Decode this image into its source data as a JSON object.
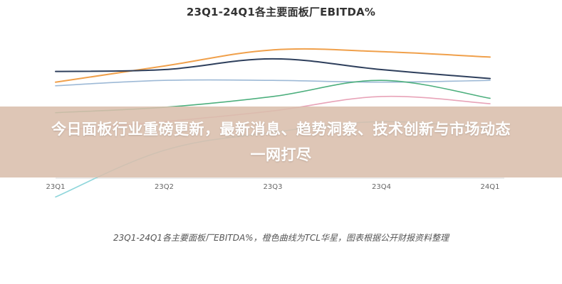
{
  "headline": "今日面板行业重磅更新，最新消息、趋势洞察、技术创新与市场动态一网打尽",
  "caption": "23Q1-24Q1各主要面板厂EBITDA%，橙色曲线为TCL华星，图表根据公开财报资料整理",
  "colors": {
    "overlay": "#d9beac",
    "orange": "#f0a04b",
    "navy": "#2e3f5c",
    "lightblue": "#9db9d6",
    "green": "#4caf7d",
    "pink": "#e8a3b8",
    "cyan": "#8fd6db"
  },
  "chart_data": {
    "type": "line",
    "title": "23Q1-24Q1各主要面板厂EBITDA%",
    "categories": [
      "23Q1",
      "23Q2",
      "23Q3",
      "23Q4",
      "24Q1"
    ],
    "series": [
      {
        "color_key": "orange",
        "values": [
          22,
          31,
          40,
          39,
          36
        ]
      },
      {
        "color_key": "navy",
        "values": [
          28,
          29,
          35,
          29,
          24
        ]
      },
      {
        "color_key": "lightblue",
        "values": [
          20,
          23,
          23,
          22,
          23
        ]
      },
      {
        "color_key": "green",
        "values": [
          5,
          8,
          14,
          23,
          13
        ]
      },
      {
        "color_key": "pink",
        "values": [
          -5,
          0,
          6,
          14,
          10
        ]
      },
      {
        "color_key": "cyan",
        "values": [
          -42,
          -16,
          -6,
          0,
          -4
        ]
      }
    ],
    "ylim": [
      -45,
      50
    ],
    "grid": false
  }
}
